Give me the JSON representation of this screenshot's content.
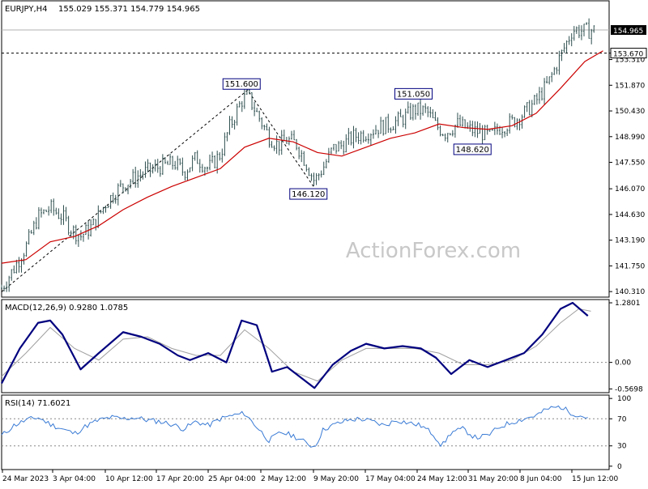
{
  "header": {
    "symbol": "EURJPY,H4",
    "ohlc": "155.029 155.371 154.779 154.965"
  },
  "watermark": "ActionForex.com",
  "colors": {
    "background": "#ffffff",
    "candle": "#2f4f4f",
    "ma": "#cc0000",
    "macd": "#00007f",
    "signal": "#a0a0a0",
    "rsi": "#3a7bd5",
    "grid": "#c8c8c8",
    "text": "#000000",
    "watermark": "#c8c8c8"
  },
  "chart_data": [
    {
      "type": "candlestick",
      "panel": "price",
      "yticks": [
        "154.965",
        "153.670",
        "153.310",
        "151.870",
        "150.430",
        "148.990",
        "147.550",
        "146.070",
        "144.630",
        "143.190",
        "141.750",
        "140.310"
      ],
      "yticks_display": [
        "153.670",
        "153.310",
        "151.870",
        "150.430",
        "148.990",
        "147.550",
        "146.070",
        "144.630",
        "143.190",
        "141.750",
        "140.310"
      ],
      "ylim": [
        140.0,
        156.6
      ],
      "price_line": 154.965,
      "price_line_label": "154.965",
      "level_line": 153.67,
      "level_line_label": "153.670",
      "annotations": [
        {
          "label": "151.600",
          "x": 0.395,
          "y": 151.6
        },
        {
          "label": "146.120",
          "x": 0.505,
          "y": 146.12
        },
        {
          "label": "151.050",
          "x": 0.678,
          "y": 151.05
        },
        {
          "label": "148.620",
          "x": 0.775,
          "y": 148.62
        }
      ],
      "zigzag": [
        {
          "x": 0.0,
          "y": 140.3
        },
        {
          "x": 0.405,
          "y": 151.6
        },
        {
          "x": 0.515,
          "y": 146.12
        }
      ],
      "series_close": [
        {
          "x": 0.0,
          "y": 140.5
        },
        {
          "x": 0.02,
          "y": 141.6
        },
        {
          "x": 0.04,
          "y": 142.8
        },
        {
          "x": 0.06,
          "y": 144.5
        },
        {
          "x": 0.08,
          "y": 145.0
        },
        {
          "x": 0.1,
          "y": 144.5
        },
        {
          "x": 0.115,
          "y": 143.8
        },
        {
          "x": 0.13,
          "y": 143.4
        },
        {
          "x": 0.15,
          "y": 144.0
        },
        {
          "x": 0.17,
          "y": 145.2
        },
        {
          "x": 0.19,
          "y": 146.0
        },
        {
          "x": 0.21,
          "y": 146.5
        },
        {
          "x": 0.235,
          "y": 147.0
        },
        {
          "x": 0.26,
          "y": 147.3
        },
        {
          "x": 0.285,
          "y": 147.5
        },
        {
          "x": 0.3,
          "y": 147.0
        },
        {
          "x": 0.32,
          "y": 147.8
        },
        {
          "x": 0.34,
          "y": 147.2
        },
        {
          "x": 0.36,
          "y": 148.0
        },
        {
          "x": 0.375,
          "y": 149.5
        },
        {
          "x": 0.395,
          "y": 151.0
        },
        {
          "x": 0.405,
          "y": 151.3
        },
        {
          "x": 0.42,
          "y": 150.3
        },
        {
          "x": 0.44,
          "y": 149.0
        },
        {
          "x": 0.455,
          "y": 148.5
        },
        {
          "x": 0.47,
          "y": 148.8
        },
        {
          "x": 0.485,
          "y": 148.6
        },
        {
          "x": 0.5,
          "y": 147.6
        },
        {
          "x": 0.515,
          "y": 146.5
        },
        {
          "x": 0.53,
          "y": 147.3
        },
        {
          "x": 0.545,
          "y": 148.3
        },
        {
          "x": 0.56,
          "y": 148.5
        },
        {
          "x": 0.58,
          "y": 149.0
        },
        {
          "x": 0.6,
          "y": 149.2
        },
        {
          "x": 0.62,
          "y": 149.5
        },
        {
          "x": 0.64,
          "y": 149.7
        },
        {
          "x": 0.66,
          "y": 150.0
        },
        {
          "x": 0.68,
          "y": 150.5
        },
        {
          "x": 0.7,
          "y": 150.4
        },
        {
          "x": 0.715,
          "y": 149.6
        },
        {
          "x": 0.73,
          "y": 149.2
        },
        {
          "x": 0.75,
          "y": 149.7
        },
        {
          "x": 0.77,
          "y": 149.4
        },
        {
          "x": 0.79,
          "y": 149.2
        },
        {
          "x": 0.805,
          "y": 149.0
        },
        {
          "x": 0.82,
          "y": 149.5
        },
        {
          "x": 0.84,
          "y": 149.8
        },
        {
          "x": 0.86,
          "y": 150.3
        },
        {
          "x": 0.88,
          "y": 151.0
        },
        {
          "x": 0.9,
          "y": 152.0
        },
        {
          "x": 0.92,
          "y": 153.5
        },
        {
          "x": 0.94,
          "y": 155.0
        },
        {
          "x": 0.96,
          "y": 154.9
        },
        {
          "x": 0.975,
          "y": 154.965
        }
      ],
      "series_ma": [
        {
          "x": 0.0,
          "y": 141.9
        },
        {
          "x": 0.04,
          "y": 142.1
        },
        {
          "x": 0.08,
          "y": 143.1
        },
        {
          "x": 0.12,
          "y": 143.4
        },
        {
          "x": 0.16,
          "y": 144.0
        },
        {
          "x": 0.2,
          "y": 144.9
        },
        {
          "x": 0.24,
          "y": 145.6
        },
        {
          "x": 0.28,
          "y": 146.2
        },
        {
          "x": 0.32,
          "y": 146.7
        },
        {
          "x": 0.36,
          "y": 147.2
        },
        {
          "x": 0.4,
          "y": 148.4
        },
        {
          "x": 0.44,
          "y": 148.9
        },
        {
          "x": 0.48,
          "y": 148.7
        },
        {
          "x": 0.52,
          "y": 148.1
        },
        {
          "x": 0.56,
          "y": 147.9
        },
        {
          "x": 0.6,
          "y": 148.4
        },
        {
          "x": 0.64,
          "y": 148.9
        },
        {
          "x": 0.68,
          "y": 149.2
        },
        {
          "x": 0.72,
          "y": 149.7
        },
        {
          "x": 0.76,
          "y": 149.5
        },
        {
          "x": 0.8,
          "y": 149.4
        },
        {
          "x": 0.84,
          "y": 149.6
        },
        {
          "x": 0.88,
          "y": 150.3
        },
        {
          "x": 0.92,
          "y": 151.7
        },
        {
          "x": 0.96,
          "y": 153.2
        },
        {
          "x": 0.99,
          "y": 153.8
        }
      ]
    },
    {
      "type": "line",
      "panel": "macd",
      "title": "MACD(12,26,9) 0.9280 1.0785",
      "yticks": [
        "1.2801",
        "0.00",
        "-0.5698"
      ],
      "ylim": [
        -0.65,
        1.35
      ],
      "series": [
        {
          "name": "MACD",
          "values": [
            {
              "x": 0.0,
              "y": -0.45
            },
            {
              "x": 0.03,
              "y": 0.3
            },
            {
              "x": 0.06,
              "y": 0.85
            },
            {
              "x": 0.08,
              "y": 0.9
            },
            {
              "x": 0.1,
              "y": 0.6
            },
            {
              "x": 0.13,
              "y": -0.15
            },
            {
              "x": 0.16,
              "y": 0.2
            },
            {
              "x": 0.2,
              "y": 0.65
            },
            {
              "x": 0.23,
              "y": 0.55
            },
            {
              "x": 0.26,
              "y": 0.4
            },
            {
              "x": 0.29,
              "y": 0.15
            },
            {
              "x": 0.31,
              "y": 0.05
            },
            {
              "x": 0.34,
              "y": 0.2
            },
            {
              "x": 0.37,
              "y": 0.0
            },
            {
              "x": 0.395,
              "y": 0.9
            },
            {
              "x": 0.42,
              "y": 0.8
            },
            {
              "x": 0.445,
              "y": -0.2
            },
            {
              "x": 0.47,
              "y": -0.1
            },
            {
              "x": 0.5,
              "y": -0.4
            },
            {
              "x": 0.515,
              "y": -0.55
            },
            {
              "x": 0.545,
              "y": -0.05
            },
            {
              "x": 0.575,
              "y": 0.25
            },
            {
              "x": 0.6,
              "y": 0.4
            },
            {
              "x": 0.63,
              "y": 0.3
            },
            {
              "x": 0.66,
              "y": 0.35
            },
            {
              "x": 0.69,
              "y": 0.3
            },
            {
              "x": 0.715,
              "y": 0.1
            },
            {
              "x": 0.74,
              "y": -0.25
            },
            {
              "x": 0.77,
              "y": 0.05
            },
            {
              "x": 0.8,
              "y": -0.1
            },
            {
              "x": 0.83,
              "y": 0.05
            },
            {
              "x": 0.86,
              "y": 0.2
            },
            {
              "x": 0.89,
              "y": 0.6
            },
            {
              "x": 0.92,
              "y": 1.15
            },
            {
              "x": 0.94,
              "y": 1.28
            },
            {
              "x": 0.965,
              "y": 1.0
            }
          ]
        },
        {
          "name": "Signal",
          "values": [
            {
              "x": 0.0,
              "y": -0.3
            },
            {
              "x": 0.04,
              "y": 0.2
            },
            {
              "x": 0.08,
              "y": 0.75
            },
            {
              "x": 0.12,
              "y": 0.3
            },
            {
              "x": 0.16,
              "y": 0.05
            },
            {
              "x": 0.2,
              "y": 0.5
            },
            {
              "x": 0.24,
              "y": 0.55
            },
            {
              "x": 0.28,
              "y": 0.3
            },
            {
              "x": 0.32,
              "y": 0.15
            },
            {
              "x": 0.36,
              "y": 0.15
            },
            {
              "x": 0.4,
              "y": 0.7
            },
            {
              "x": 0.44,
              "y": 0.3
            },
            {
              "x": 0.48,
              "y": -0.2
            },
            {
              "x": 0.52,
              "y": -0.4
            },
            {
              "x": 0.56,
              "y": 0.05
            },
            {
              "x": 0.6,
              "y": 0.3
            },
            {
              "x": 0.64,
              "y": 0.3
            },
            {
              "x": 0.68,
              "y": 0.3
            },
            {
              "x": 0.72,
              "y": 0.2
            },
            {
              "x": 0.76,
              "y": -0.05
            },
            {
              "x": 0.8,
              "y": -0.05
            },
            {
              "x": 0.84,
              "y": 0.05
            },
            {
              "x": 0.88,
              "y": 0.35
            },
            {
              "x": 0.92,
              "y": 0.85
            },
            {
              "x": 0.95,
              "y": 1.15
            },
            {
              "x": 0.97,
              "y": 1.1
            }
          ]
        }
      ]
    },
    {
      "type": "line",
      "panel": "rsi",
      "title": "RSI(14) 71.6021",
      "yticks": [
        "100",
        "70",
        "30",
        "0"
      ],
      "ylim": [
        0,
        100
      ],
      "levels": [
        70,
        30
      ],
      "series": [
        {
          "name": "RSI",
          "values": [
            {
              "x": 0.0,
              "y": 45
            },
            {
              "x": 0.02,
              "y": 60
            },
            {
              "x": 0.04,
              "y": 68
            },
            {
              "x": 0.06,
              "y": 72
            },
            {
              "x": 0.08,
              "y": 62
            },
            {
              "x": 0.1,
              "y": 55
            },
            {
              "x": 0.12,
              "y": 48
            },
            {
              "x": 0.14,
              "y": 60
            },
            {
              "x": 0.16,
              "y": 68
            },
            {
              "x": 0.18,
              "y": 72
            },
            {
              "x": 0.2,
              "y": 70
            },
            {
              "x": 0.22,
              "y": 72
            },
            {
              "x": 0.24,
              "y": 68
            },
            {
              "x": 0.26,
              "y": 66
            },
            {
              "x": 0.28,
              "y": 62
            },
            {
              "x": 0.3,
              "y": 55
            },
            {
              "x": 0.32,
              "y": 66
            },
            {
              "x": 0.34,
              "y": 60
            },
            {
              "x": 0.36,
              "y": 70
            },
            {
              "x": 0.38,
              "y": 75
            },
            {
              "x": 0.4,
              "y": 78
            },
            {
              "x": 0.42,
              "y": 58
            },
            {
              "x": 0.44,
              "y": 38
            },
            {
              "x": 0.46,
              "y": 50
            },
            {
              "x": 0.48,
              "y": 45
            },
            {
              "x": 0.5,
              "y": 35
            },
            {
              "x": 0.515,
              "y": 28
            },
            {
              "x": 0.53,
              "y": 55
            },
            {
              "x": 0.55,
              "y": 62
            },
            {
              "x": 0.57,
              "y": 68
            },
            {
              "x": 0.59,
              "y": 70
            },
            {
              "x": 0.61,
              "y": 66
            },
            {
              "x": 0.63,
              "y": 60
            },
            {
              "x": 0.65,
              "y": 68
            },
            {
              "x": 0.67,
              "y": 64
            },
            {
              "x": 0.69,
              "y": 60
            },
            {
              "x": 0.71,
              "y": 48
            },
            {
              "x": 0.725,
              "y": 30
            },
            {
              "x": 0.74,
              "y": 50
            },
            {
              "x": 0.76,
              "y": 55
            },
            {
              "x": 0.78,
              "y": 42
            },
            {
              "x": 0.8,
              "y": 45
            },
            {
              "x": 0.82,
              "y": 58
            },
            {
              "x": 0.84,
              "y": 65
            },
            {
              "x": 0.86,
              "y": 70
            },
            {
              "x": 0.88,
              "y": 75
            },
            {
              "x": 0.9,
              "y": 85
            },
            {
              "x": 0.92,
              "y": 88
            },
            {
              "x": 0.935,
              "y": 80
            },
            {
              "x": 0.95,
              "y": 75
            },
            {
              "x": 0.965,
              "y": 72
            }
          ]
        }
      ]
    }
  ],
  "x_axis": {
    "labels": [
      "24 Mar 2023",
      "3 Apr 04:00",
      "10 Apr 12:00",
      "17 Apr 20:00",
      "25 Apr 04:00",
      "2 May 12:00",
      "9 May 20:00",
      "17 May 04:00",
      "24 May 12:00",
      "31 May 20:00",
      "8 Jun 04:00",
      "15 Jun 12:00"
    ]
  }
}
